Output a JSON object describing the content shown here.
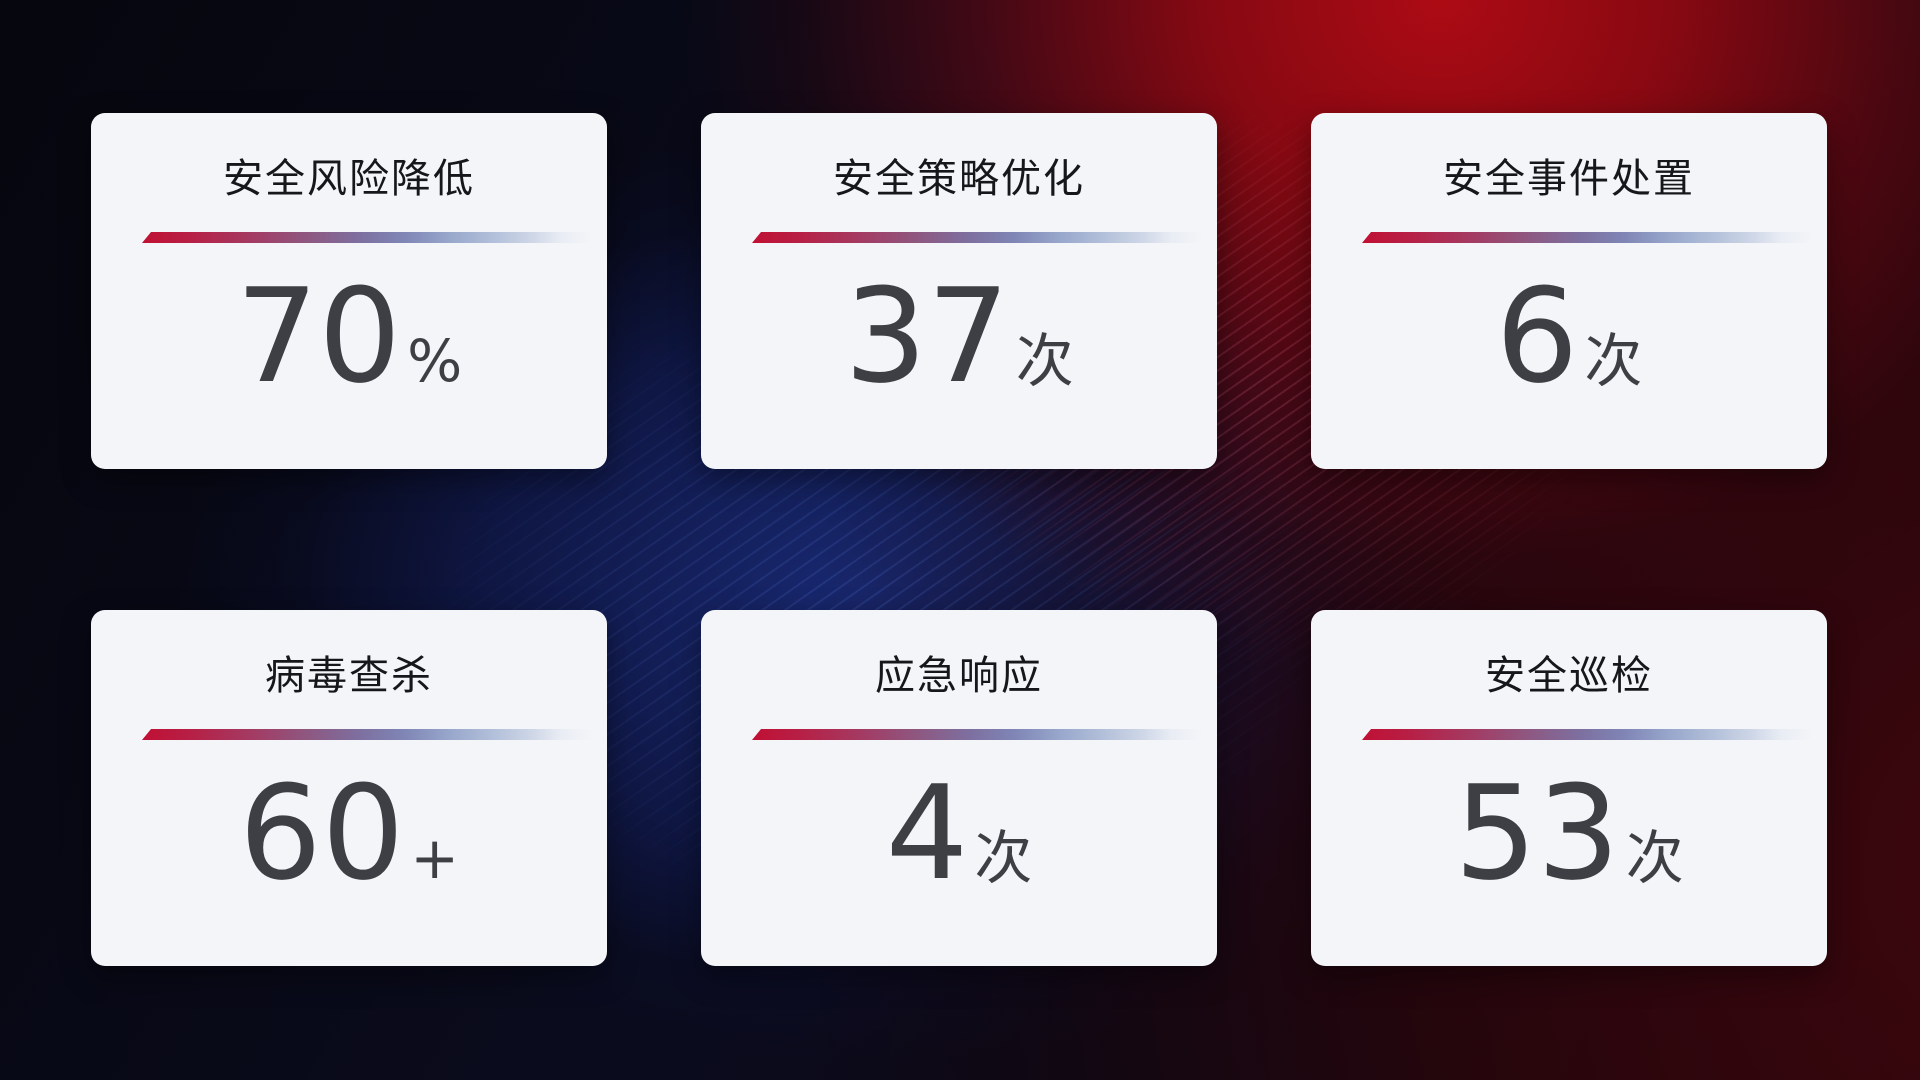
{
  "cards": [
    {
      "title": "安全风险降低",
      "value": "70",
      "unit": "%"
    },
    {
      "title": "安全策略优化",
      "value": "37",
      "unit": "次"
    },
    {
      "title": "安全事件处置",
      "value": "6",
      "unit": "次"
    },
    {
      "title": "病毒查杀",
      "value": "60",
      "unit": "+"
    },
    {
      "title": "应急响应",
      "value": "4",
      "unit": "次"
    },
    {
      "title": "安全巡检",
      "value": "53",
      "unit": "次"
    }
  ],
  "colors": {
    "card_background": "#f4f5f8",
    "title_text": "#16171b",
    "value_text": "#3e3f44",
    "divider_gradient_start": "#c01034",
    "divider_gradient_mid": "#7d6f9f",
    "divider_gradient_end": "#e9edf4",
    "background_red": "#a80a14",
    "background_navy": "#192a76",
    "background_dark": "#07070f"
  }
}
